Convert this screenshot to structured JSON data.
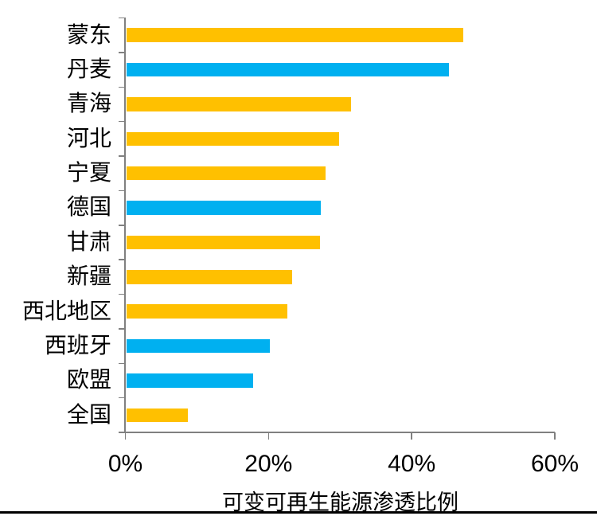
{
  "chart_data": {
    "type": "bar",
    "orientation": "horizontal",
    "title": "",
    "xlabel": "可变可再生能源渗透比例",
    "ylabel": "",
    "xlim": [
      0,
      60
    ],
    "grid": false,
    "legend": "none",
    "categories": [
      "蒙东",
      "丹麦",
      "青海",
      "河北",
      "宁夏",
      "德国",
      "甘肃",
      "新疆",
      "西北地区",
      "西班牙",
      "欧盟",
      "全国"
    ],
    "values": [
      47.0,
      45.0,
      31.4,
      29.7,
      27.8,
      27.1,
      27.0,
      23.1,
      22.5,
      20.0,
      17.7,
      8.6
    ],
    "bar_colors": [
      "#FFC000",
      "#00B0F0",
      "#FFC000",
      "#FFC000",
      "#FFC000",
      "#00B0F0",
      "#FFC000",
      "#FFC000",
      "#FFC000",
      "#00B0F0",
      "#00B0F0",
      "#FFC000"
    ],
    "x_ticks": [
      {
        "value": 0,
        "label": "0%"
      },
      {
        "value": 20,
        "label": "20%"
      },
      {
        "value": 40,
        "label": "40%"
      },
      {
        "value": 60,
        "label": "60%"
      }
    ],
    "colors": {
      "yellow_bar": "#FFC000",
      "blue_bar": "#00B0F0",
      "axis": "#808080",
      "text": "#000000",
      "bottom_rule": "#000000"
    }
  }
}
